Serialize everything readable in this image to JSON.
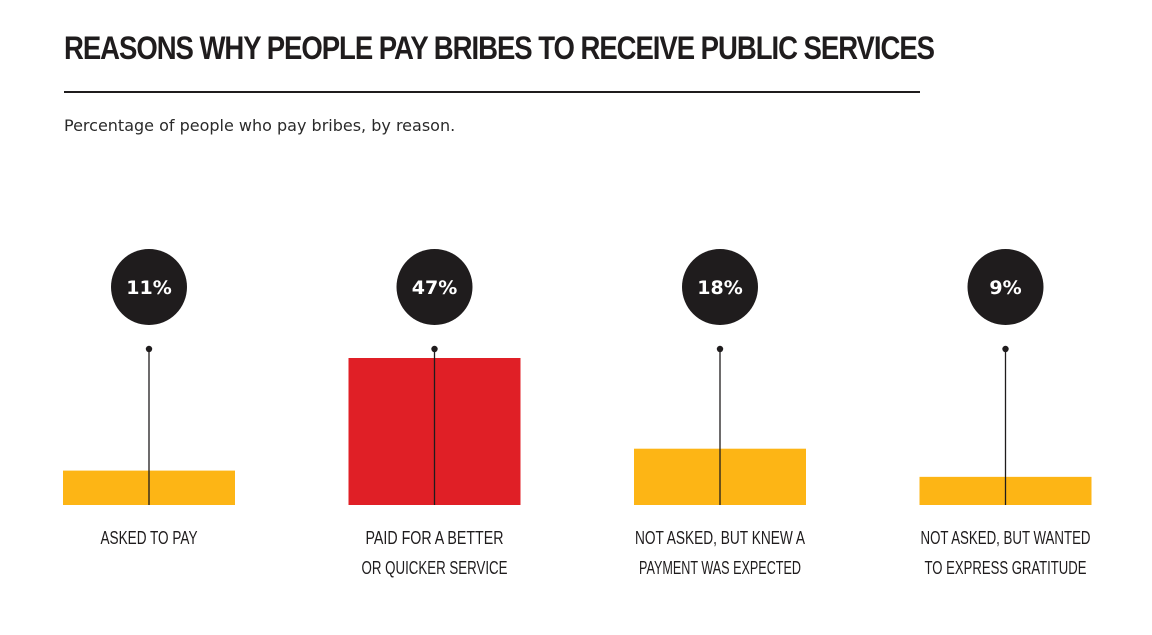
{
  "title": "REASONS WHY PEOPLE PAY BRIBES TO RECEIVE PUBLIC SERVICES",
  "subtitle": "Percentage of people who pay bribes, by reason.",
  "colors": {
    "default_bar": "#FDB515",
    "highlight_bar": "#E01F26",
    "bubble": "#1F1C1D",
    "text": "#1F1C1D"
  },
  "chart_data": {
    "type": "bar",
    "categories": [
      [
        "ASKED TO PAY"
      ],
      [
        "PAID FOR A BETTER",
        "OR QUICKER SERVICE"
      ],
      [
        "NOT ASKED, BUT KNEW A",
        "PAYMENT WAS EXPECTED"
      ],
      [
        "NOT ASKED, BUT WANTED",
        "TO EXPRESS GRATITUDE"
      ]
    ],
    "values": [
      11,
      47,
      18,
      9
    ],
    "data_labels": [
      "11%",
      "47%",
      "18%",
      "9%"
    ],
    "highlight_index": 1,
    "ylim": [
      0,
      50
    ],
    "grid": false,
    "legend": "none",
    "title": "REASONS WHY PEOPLE PAY BRIBES TO RECEIVE PUBLIC SERVICES",
    "subtitle": "Percentage of people who pay bribes, by reason.",
    "xlabel": "",
    "ylabel": ""
  }
}
